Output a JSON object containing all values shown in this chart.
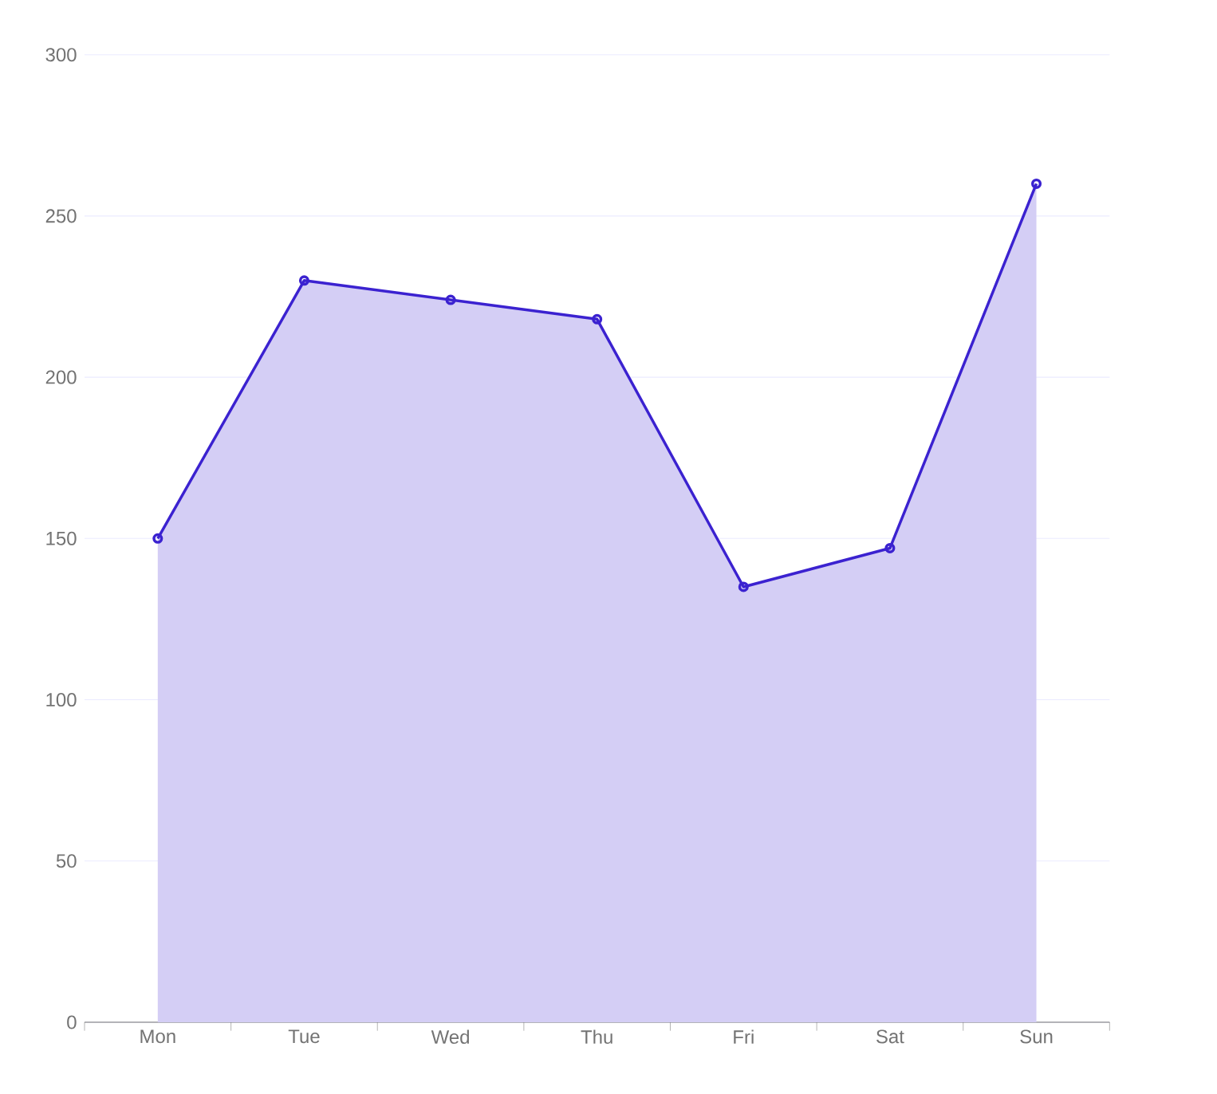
{
  "chart_data": {
    "type": "area",
    "categories": [
      "Mon",
      "Tue",
      "Wed",
      "Thu",
      "Fri",
      "Sat",
      "Sun"
    ],
    "series": [
      {
        "color": "#3b22d0",
        "values": [
          150,
          230,
          224,
          218,
          135,
          147,
          260
        ]
      }
    ],
    "ylim": [
      0,
      300
    ],
    "yticks": [
      0,
      50,
      100,
      150,
      200,
      250,
      300
    ],
    "grid": "y",
    "marker": "circle",
    "line_style": "solid"
  }
}
